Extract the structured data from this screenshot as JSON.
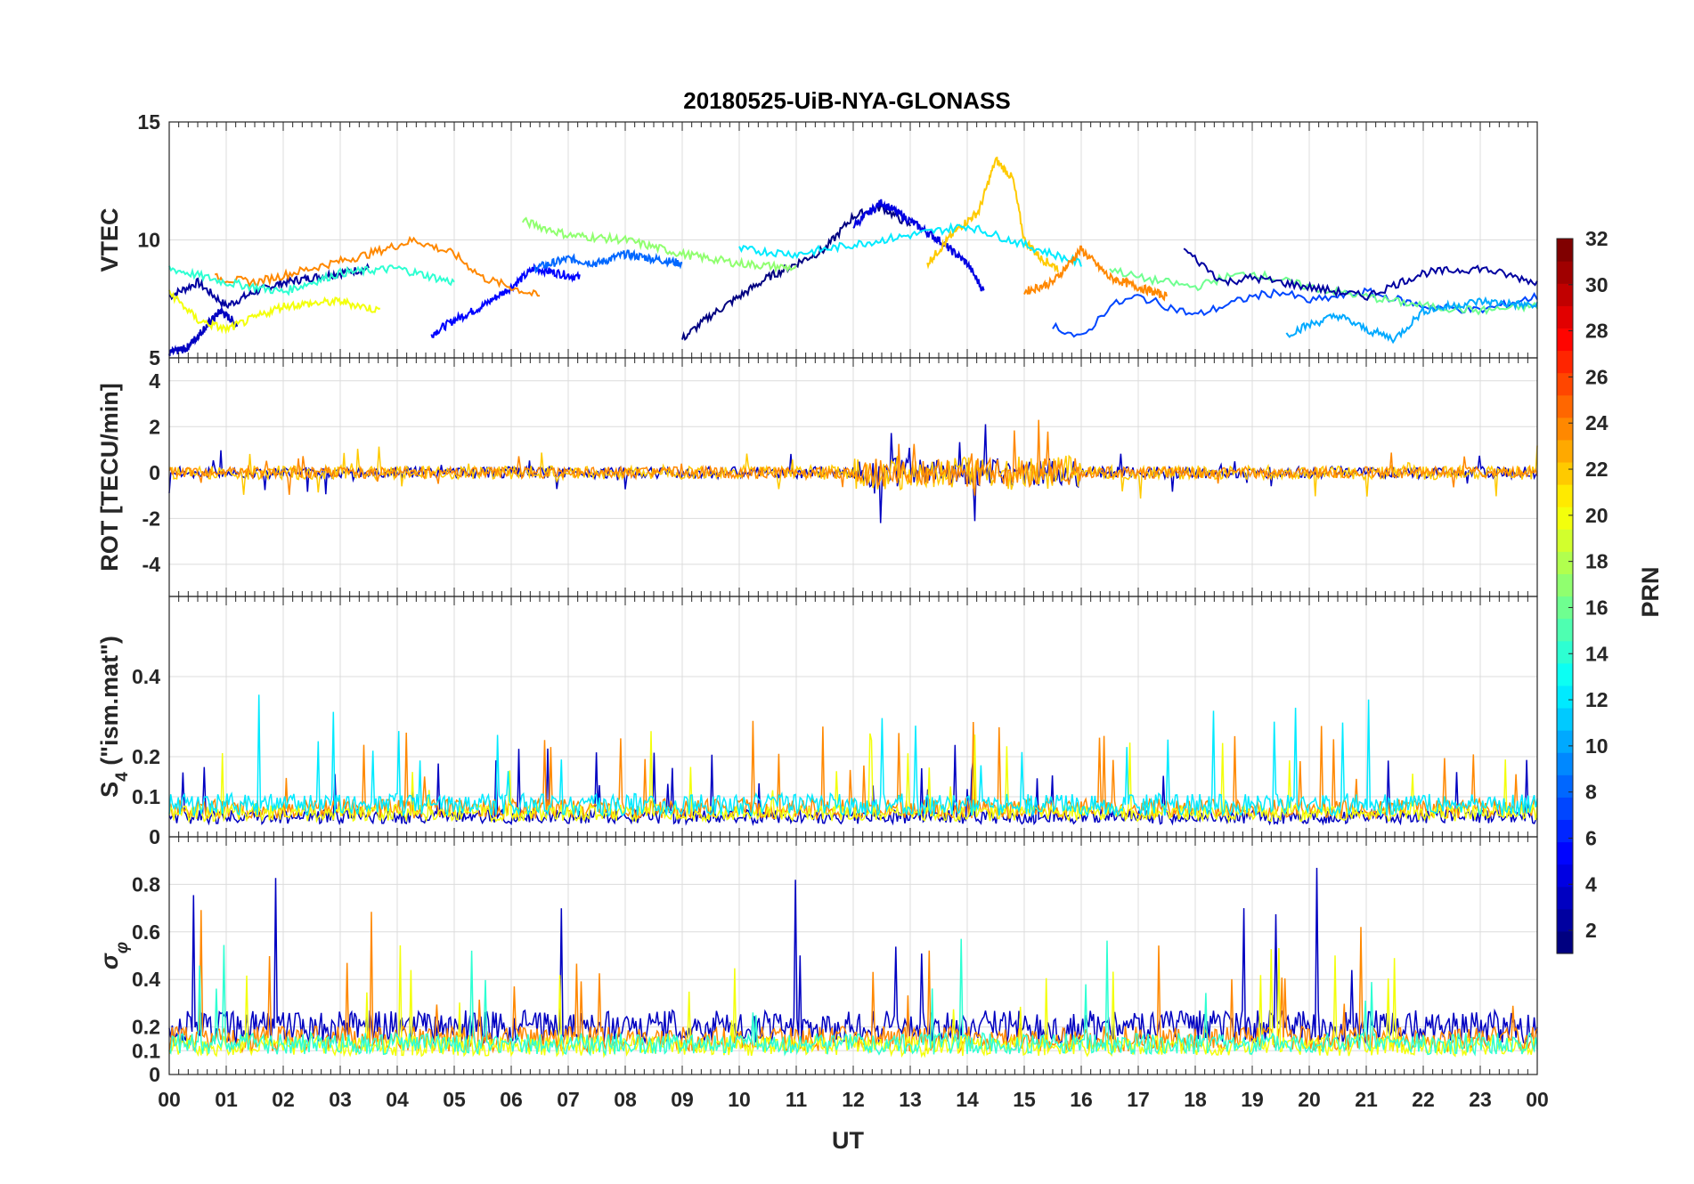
{
  "chart_data": {
    "type": "line",
    "title": "20180525-UiB-NYA-GLONASS",
    "xlabel": "UT",
    "x_ticks": [
      "00",
      "01",
      "02",
      "03",
      "04",
      "05",
      "06",
      "07",
      "08",
      "09",
      "10",
      "11",
      "12",
      "13",
      "14",
      "15",
      "16",
      "17",
      "18",
      "19",
      "20",
      "21",
      "22",
      "23",
      "00"
    ],
    "x_range_hours": [
      0,
      24
    ],
    "grid": true,
    "panels": [
      {
        "id": "vtec",
        "ylabel": "VTEC",
        "ylim": [
          5,
          15
        ],
        "yticks": [
          "5",
          "10",
          "15"
        ],
        "series": [
          {
            "prn": 2,
            "x": [
              0,
              0.5,
              1,
              1.5,
              2,
              2.5,
              3,
              3.5
            ],
            "y": [
              7.6,
              8.2,
              7.2,
              7.8,
              8.2,
              8.4,
              8.6,
              8.8
            ]
          },
          {
            "prn": 3,
            "x": [
              0,
              0.3,
              0.6,
              0.9,
              1.2
            ],
            "y": [
              5.2,
              5.4,
              6.2,
              7.0,
              6.4
            ]
          },
          {
            "prn": 5,
            "x": [
              4.6,
              5.0,
              5.5,
              6.0,
              6.4,
              6.8,
              7.2
            ],
            "y": [
              6.0,
              6.6,
              7.2,
              8.0,
              8.8,
              8.6,
              8.4
            ]
          },
          {
            "prn": 8,
            "x": [
              6.4,
              7.0,
              7.5,
              8.0,
              8.5,
              9.0
            ],
            "y": [
              8.8,
              9.2,
              9.0,
              9.4,
              9.2,
              9.0
            ]
          },
          {
            "prn": 1,
            "x": [
              9.0,
              9.5,
              10.0,
              10.5,
              11.0,
              11.5,
              12.0,
              12.5,
              13.0
            ],
            "y": [
              5.8,
              6.8,
              7.6,
              8.4,
              9.0,
              9.6,
              11.0,
              11.4,
              10.6
            ]
          },
          {
            "prn": 4,
            "x": [
              12.0,
              12.5,
              13.0,
              13.5,
              14.0,
              14.3
            ],
            "y": [
              10.6,
              11.6,
              10.8,
              10.0,
              9.0,
              7.8
            ]
          },
          {
            "prn": 22,
            "x": [
              13.3,
              13.8,
              14.2,
              14.5,
              14.8,
              15.0,
              15.3,
              15.6
            ],
            "y": [
              9.0,
              10.4,
              11.2,
              13.4,
              12.6,
              10.0,
              9.2,
              8.8
            ]
          },
          {
            "prn": 24,
            "x": [
              0.8,
              1.5,
              2.5,
              3.5,
              4.3,
              5.0,
              5.5,
              6.0,
              6.5
            ],
            "y": [
              8.4,
              8.2,
              8.8,
              9.4,
              10.0,
              9.4,
              8.4,
              8.0,
              7.6
            ]
          },
          {
            "prn": 14,
            "x": [
              0,
              1,
              2,
              3,
              4,
              5
            ],
            "y": [
              8.8,
              8.2,
              7.8,
              8.6,
              8.8,
              8.2
            ]
          },
          {
            "prn": 17,
            "x": [
              6.2,
              7.0,
              8.0,
              9.0,
              10.0,
              11.0
            ],
            "y": [
              10.8,
              10.2,
              10.0,
              9.4,
              9.0,
              8.8
            ]
          },
          {
            "prn": 12,
            "x": [
              10.0,
              11.0,
              12.0,
              13.0,
              14.0,
              15.0,
              16.0
            ],
            "y": [
              9.6,
              9.4,
              9.8,
              10.2,
              10.6,
              9.8,
              9.0
            ]
          },
          {
            "prn": 24,
            "x": [
              15.0,
              15.5,
              16.0,
              16.5,
              17.0,
              17.5
            ],
            "y": [
              7.8,
              8.2,
              9.6,
              8.4,
              8.0,
              7.6
            ]
          },
          {
            "prn": 7,
            "x": [
              15.5,
              16.0,
              16.5,
              17.0,
              17.5,
              18.0,
              18.5,
              19.0,
              19.5,
              20.0,
              21.0,
              22.0,
              23.0,
              24.0
            ],
            "y": [
              6.4,
              5.8,
              7.2,
              7.6,
              7.2,
              6.8,
              7.2,
              7.6,
              7.8,
              7.4,
              7.8,
              7.2,
              7.0,
              7.6
            ]
          },
          {
            "prn": 16,
            "x": [
              16.5,
              17.0,
              17.5,
              18.0,
              18.5,
              19.0,
              20.0,
              21.0,
              22.0,
              23.0,
              24.0
            ],
            "y": [
              8.8,
              8.4,
              8.2,
              8.0,
              8.4,
              8.6,
              8.0,
              7.6,
              7.2,
              7.0,
              7.2
            ]
          },
          {
            "prn": 2,
            "x": [
              17.8,
              18.5,
              19.0,
              20.0,
              21.0,
              22.0,
              23.0,
              24.0
            ],
            "y": [
              9.6,
              8.2,
              8.4,
              8.0,
              7.6,
              8.6,
              8.8,
              8.2
            ]
          },
          {
            "prn": 10,
            "x": [
              19.6,
              20.0,
              20.5,
              21.0,
              21.5,
              22.0,
              23.0,
              24.0
            ],
            "y": [
              6.0,
              6.4,
              6.8,
              6.2,
              5.8,
              7.0,
              7.4,
              7.2
            ]
          },
          {
            "prn": 20,
            "x": [
              0,
              0.5,
              1.0,
              2.0,
              3.0,
              3.7
            ],
            "y": [
              7.8,
              6.6,
              6.2,
              7.2,
              7.4,
              7.0
            ]
          }
        ]
      },
      {
        "id": "rot",
        "ylabel": "ROT [TECU/min]",
        "ylim": [
          -5.4,
          5
        ],
        "yticks": [
          "-4",
          "-2",
          "0",
          "2",
          "4"
        ],
        "series": [
          {
            "prn": 3,
            "note": "noise around 0",
            "amplitude_base": 0.25
          },
          {
            "prn": 22,
            "note": "bursts",
            "amplitude_base": 0.3
          },
          {
            "prn": 24,
            "note": "noise",
            "amplitude_base": 0.25
          }
        ]
      },
      {
        "id": "s4",
        "ylabel": "S",
        "ylabel_sub": "4",
        "ylabel_tail": " (\"ism.mat\")",
        "ylim": [
          0,
          0.6
        ],
        "yticks": [
          "0",
          "0.1",
          "0.2",
          "0.4"
        ],
        "series": [
          {
            "prn": 3,
            "baseline": 0.05
          },
          {
            "prn": 24,
            "baseline": 0.07
          },
          {
            "prn": 20,
            "baseline": 0.06
          },
          {
            "prn": 12,
            "baseline": 0.08
          }
        ]
      },
      {
        "id": "sigma_phi",
        "ylabel": "σ",
        "ylabel_sub": "φ",
        "ylim": [
          0,
          1
        ],
        "yticks": [
          "0",
          "0.1",
          "0.2",
          "0.4",
          "0.6",
          "0.8"
        ],
        "series": [
          {
            "prn": 3,
            "baseline": 0.2
          },
          {
            "prn": 24,
            "baseline": 0.15
          },
          {
            "prn": 20,
            "baseline": 0.12
          },
          {
            "prn": 14,
            "baseline": 0.13
          }
        ]
      }
    ],
    "colorbar": {
      "label": "PRN",
      "range": [
        1,
        32
      ],
      "ticks": [
        "2",
        "4",
        "6",
        "8",
        "10",
        "12",
        "14",
        "16",
        "18",
        "20",
        "22",
        "24",
        "26",
        "28",
        "30",
        "32"
      ],
      "colormap": "jet"
    }
  }
}
